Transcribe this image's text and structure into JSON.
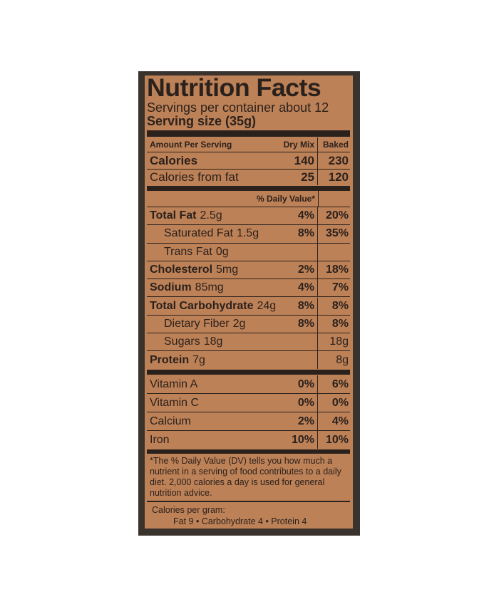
{
  "label": {
    "title": "Nutrition Facts",
    "servings": "Servings per container about 12",
    "serving_size": "Serving size (35g)",
    "header": {
      "label": "Amount Per Serving",
      "col1": "Dry Mix",
      "col2": "Baked"
    },
    "calories": {
      "label": "Calories",
      "col1": "140",
      "col2": "230"
    },
    "calories_fat": {
      "label": "Calories from fat",
      "col1": "25",
      "col2": "120"
    },
    "dv_header": "% Daily Value*",
    "nutrients": [
      {
        "name": "Total Fat",
        "amount": "2.5g",
        "col1": "4%",
        "col2": "20%",
        "bold": true,
        "indent": false
      },
      {
        "name": "Saturated Fat",
        "amount": "1.5g",
        "col1": "8%",
        "col2": "35%",
        "bold": false,
        "indent": true
      },
      {
        "name": "Trans Fat",
        "amount": "0g",
        "col1": "",
        "col2": "",
        "bold": false,
        "indent": true
      },
      {
        "name": "Cholesterol",
        "amount": "5mg",
        "col1": "2%",
        "col2": "18%",
        "bold": true,
        "indent": false
      },
      {
        "name": "Sodium",
        "amount": "85mg",
        "col1": "4%",
        "col2": "7%",
        "bold": true,
        "indent": false
      },
      {
        "name": "Total Carbohydrate",
        "amount": "24g",
        "col1": "8%",
        "col2": "8%",
        "bold": true,
        "indent": false
      },
      {
        "name": "Dietary Fiber",
        "amount": "2g",
        "col1": "8%",
        "col2": "8%",
        "bold": false,
        "indent": true
      },
      {
        "name": "Sugars",
        "amount": "18g",
        "col1": "",
        "col2": "18g",
        "bold": false,
        "indent": true
      },
      {
        "name": "Protein",
        "amount": "7g",
        "col1": "",
        "col2": "8g",
        "bold": true,
        "indent": false
      }
    ],
    "vitamins": [
      {
        "name": "Vitamin A",
        "col1": "0%",
        "col2": "6%"
      },
      {
        "name": "Vitamin C",
        "col1": "0%",
        "col2": "0%"
      },
      {
        "name": "Calcium",
        "col1": "2%",
        "col2": "4%"
      },
      {
        "name": "Iron",
        "col1": "10%",
        "col2": "10%"
      }
    ],
    "footnote": "*The % Daily Value (DV) tells you how much a nutrient in a serving of food contributes to a daily diet. 2,000 calories a day is used for general nutrition advice.",
    "calories_per_gram_label": "Calories per gram:",
    "calories_per_gram": "Fat 9  •  Carbohydrate 4  •  Protein 4"
  }
}
